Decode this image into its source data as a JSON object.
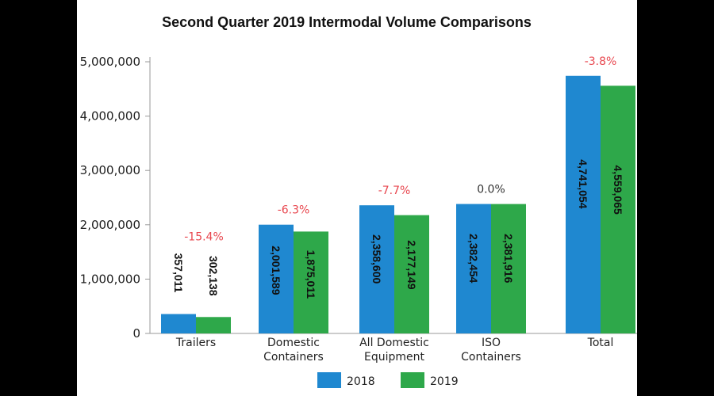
{
  "chart_data": {
    "type": "bar",
    "title": "Second Quarter 2019 Intermodal Volume Comparisons",
    "categories": [
      [
        "Trailers"
      ],
      [
        "Domestic",
        "Containers"
      ],
      [
        "All Domestic",
        "Equipment"
      ],
      [
        "ISO",
        "Containers"
      ],
      [
        "Total"
      ]
    ],
    "series": [
      {
        "name": "2018",
        "color": "#1f88d0",
        "values": [
          357011,
          2001589,
          2358600,
          2382454,
          4741054
        ]
      },
      {
        "name": "2019",
        "color": "#2ea84a",
        "values": [
          302138,
          1875011,
          2177149,
          2381916,
          4559065
        ]
      }
    ],
    "data_labels": [
      [
        "357,011",
        "2,001,589",
        "2,358,600",
        "2,382,454",
        "4,741,054"
      ],
      [
        "302,138",
        "1,875,011",
        "2,177,149",
        "2,381,916",
        "4,559,065"
      ]
    ],
    "pct_change": [
      "-15.4%",
      "-6.3%",
      "-7.7%",
      "0.0%",
      "-3.8%"
    ],
    "pct_colors": [
      "#e8474f",
      "#e8474f",
      "#e8474f",
      "#333333",
      "#e8474f"
    ],
    "ylim": [
      0,
      5000000
    ],
    "yticks": [
      0,
      1000000,
      2000000,
      3000000,
      4000000,
      5000000
    ],
    "ytick_labels": [
      "0",
      "1,000,000",
      "2,000,000",
      "3,000,000",
      "4,000,000",
      "5,000,000"
    ],
    "xlabel": "",
    "ylabel": "",
    "grid": false,
    "legend_position": "bottom"
  }
}
